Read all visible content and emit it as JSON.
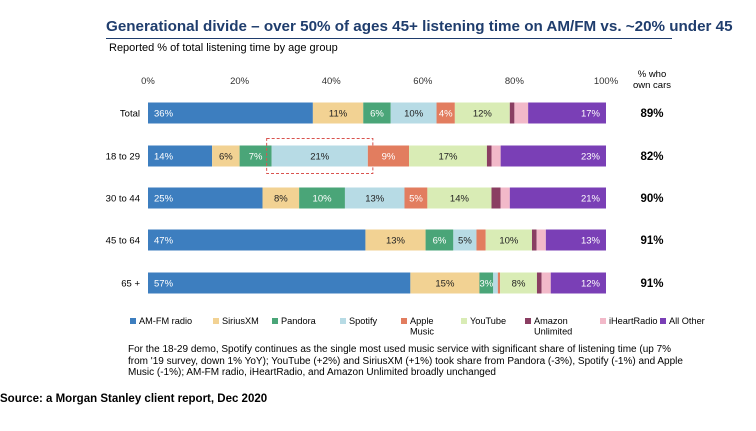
{
  "title": "Generational divide – over 50% of ages 45+ listening time on AM/FM vs. ~20% under 45",
  "subtitle": "Reported % of total listening time by age group",
  "source": "Source: a Morgan Stanley client report, Dec 2020",
  "note": "For the 18-29 demo, Spotify continues as the single most used music service with significant share of listening time (up 7% from '19 survey, down 1% YoY); YouTube (+2%) and SiriusXM (+1%) took share from Pandora (-3%), Spotify (-1%) and Apple Music (-1%); AM-FM radio, iHeartRadio, and Amazon Unlimited broadly unchanged",
  "chart_data": {
    "type": "bar",
    "orientation": "horizontal",
    "stacked": true,
    "xlim": [
      0,
      100
    ],
    "xticks": [
      "0%",
      "20%",
      "40%",
      "60%",
      "80%",
      "100%"
    ],
    "categories": [
      "Total",
      "18 to 29",
      "30 to 44",
      "45 to 64",
      "65 +"
    ],
    "series": [
      {
        "name": "AM-FM radio",
        "color": "#3d7ebf",
        "values": [
          36,
          14,
          25,
          47,
          57
        ],
        "labels": [
          "36%",
          "14%",
          "25%",
          "47%",
          "57%"
        ]
      },
      {
        "name": "SiriusXM",
        "color": "#f2d293",
        "values": [
          11,
          6,
          8,
          13,
          15
        ],
        "labels": [
          "11%",
          "6%",
          "8%",
          "13%",
          "15%"
        ]
      },
      {
        "name": "Pandora",
        "color": "#4aa578",
        "values": [
          6,
          7,
          10,
          6,
          3
        ],
        "labels": [
          "6%",
          "7%",
          "10%",
          "6%",
          "3%"
        ]
      },
      {
        "name": "Spotify",
        "color": "#b7dbe5",
        "values": [
          10,
          21,
          13,
          5,
          1
        ],
        "labels": [
          "10%",
          "21%",
          "13%",
          "5%",
          ""
        ]
      },
      {
        "name": "Apple Music",
        "color": "#e27d5f",
        "values": [
          4,
          9,
          5,
          2,
          0.5
        ],
        "labels": [
          "4%",
          "9%",
          "5%",
          "",
          ""
        ]
      },
      {
        "name": "YouTube",
        "color": "#d9ecb5",
        "values": [
          12,
          17,
          14,
          10,
          8
        ],
        "labels": [
          "12%",
          "17%",
          "14%",
          "10%",
          "8%"
        ]
      },
      {
        "name": "Amazon Unlimited",
        "color": "#8a3e62",
        "values": [
          1,
          1,
          2,
          1,
          1
        ],
        "labels": [
          "",
          "",
          "",
          "",
          ""
        ]
      },
      {
        "name": "iHeartRadio",
        "color": "#f2b9c9",
        "values": [
          3,
          2,
          2,
          2,
          2
        ],
        "labels": [
          "",
          "",
          "",
          "",
          ""
        ]
      },
      {
        "name": "All Other",
        "color": "#7a3fb6",
        "values": [
          17,
          23,
          21,
          13,
          12
        ],
        "labels": [
          "17%",
          "23%",
          "21%",
          "13%",
          "12%"
        ]
      }
    ],
    "legend_labels": [
      "AM-FM radio",
      "SiriusXM",
      "Pandora",
      "Spotify",
      "Apple\nMusic",
      "YouTube",
      "Amazon\nUnlimited",
      "iHeartRadio",
      "All Other"
    ],
    "legend_position": "bottom",
    "right_column": {
      "header": "% who\nown cars",
      "values": [
        "89%",
        "82%",
        "90%",
        "91%",
        "91%"
      ]
    },
    "highlight": {
      "category": "18 to 29",
      "series": "Spotify",
      "style": "dashed-box"
    }
  }
}
